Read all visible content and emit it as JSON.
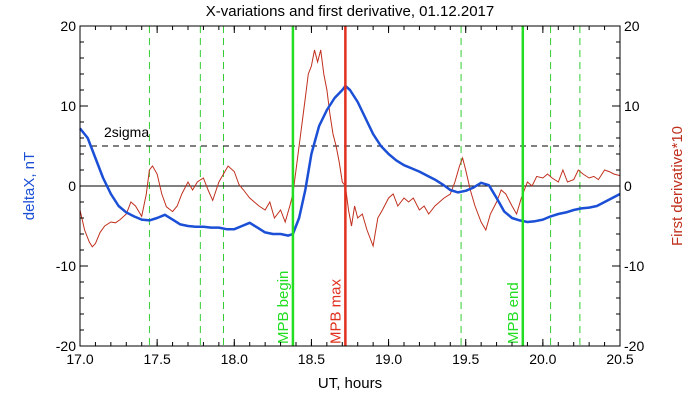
{
  "chart_data": {
    "type": "line",
    "title": "X-variations and first derivative, 01.12.2017",
    "xlabel": "UT, hours",
    "ylabel_left": "deltaX, nT",
    "ylabel_right": "First derivative*10",
    "xlim": [
      17.0,
      20.5
    ],
    "ylim_left": [
      -20,
      20
    ],
    "ylim_right": [
      -20,
      20
    ],
    "x_ticks": [
      "17.0",
      "17.5",
      "18.0",
      "18.5",
      "19.0",
      "19.5",
      "20.0",
      "20.5"
    ],
    "y_ticks_left": [
      "-20",
      "-10",
      "0",
      "10",
      "20"
    ],
    "y_ticks_right": [
      "-20",
      "-10",
      "0",
      "10",
      "20"
    ],
    "threshold": {
      "label": "2sigma",
      "value": 5.0
    },
    "zero_line": 0,
    "grid": false,
    "colors": {
      "deltaX": "#1a4fd6",
      "derivative": "#c0301e",
      "mpb_begin": "#22dd22",
      "mpb_max": "#e0301e",
      "mpb_end": "#22dd22",
      "dashed_green": "#33cc33"
    },
    "markers": [
      {
        "label": "MPB begin",
        "x": 18.38
      },
      {
        "label": "MPB max",
        "x": 18.72
      },
      {
        "label": "MPB end",
        "x": 19.87
      }
    ],
    "dashed_verticals": [
      17.45,
      17.78,
      17.93,
      19.47,
      20.05,
      20.24
    ],
    "series": [
      {
        "x": [
          17.0,
          17.05,
          17.1,
          17.15,
          17.2,
          17.25,
          17.3,
          17.35,
          17.4,
          17.45,
          17.5,
          17.55,
          17.6,
          17.65,
          17.7,
          17.75,
          17.8,
          17.85,
          17.9,
          17.95,
          18.0,
          18.05,
          18.1,
          18.15,
          18.2,
          18.25,
          18.3,
          18.35,
          18.38,
          18.42,
          18.46,
          18.5,
          18.55,
          18.6,
          18.65,
          18.7,
          18.72,
          18.75,
          18.8,
          18.85,
          18.9,
          18.95,
          19.0,
          19.05,
          19.1,
          19.15,
          19.2,
          19.25,
          19.3,
          19.35,
          19.4,
          19.45,
          19.5,
          19.55,
          19.6,
          19.65,
          19.7,
          19.75,
          19.8,
          19.85,
          19.9,
          19.95,
          20.0,
          20.05,
          20.1,
          20.15,
          20.2,
          20.25,
          20.3,
          20.35,
          20.4,
          20.45,
          20.5
        ],
        "values": [
          7.2,
          6.0,
          3.5,
          1.0,
          -1.0,
          -2.5,
          -3.3,
          -3.8,
          -4.2,
          -4.3,
          -4.0,
          -3.6,
          -4.2,
          -4.8,
          -5.0,
          -5.1,
          -5.1,
          -5.2,
          -5.2,
          -5.4,
          -5.4,
          -5.0,
          -4.6,
          -5.2,
          -5.8,
          -6.0,
          -6.0,
          -6.2,
          -6.0,
          -4.0,
          -0.5,
          4.0,
          7.5,
          9.5,
          11.0,
          12.0,
          12.5,
          12.0,
          10.5,
          8.5,
          6.5,
          5.0,
          4.0,
          3.2,
          2.6,
          2.2,
          1.8,
          1.3,
          0.8,
          0.2,
          -0.5,
          -0.8,
          -0.6,
          -0.2,
          0.4,
          0.1,
          -1.5,
          -3.2,
          -4.0,
          -4.3,
          -4.5,
          -4.4,
          -4.2,
          -3.8,
          -3.5,
          -3.3,
          -3.0,
          -2.8,
          -2.7,
          -2.5,
          -2.0,
          -1.5,
          -1.0
        ]
      },
      {
        "x": [
          17.0,
          17.03,
          17.06,
          17.08,
          17.1,
          17.13,
          17.16,
          17.2,
          17.23,
          17.26,
          17.3,
          17.33,
          17.36,
          17.4,
          17.43,
          17.45,
          17.47,
          17.5,
          17.53,
          17.56,
          17.6,
          17.63,
          17.66,
          17.7,
          17.73,
          17.76,
          17.8,
          17.83,
          17.86,
          17.9,
          17.93,
          17.96,
          18.0,
          18.03,
          18.06,
          18.1,
          18.13,
          18.16,
          18.2,
          18.23,
          18.26,
          18.3,
          18.33,
          18.36,
          18.38,
          18.4,
          18.42,
          18.44,
          18.46,
          18.48,
          18.5,
          18.52,
          18.54,
          18.56,
          18.58,
          18.6,
          18.62,
          18.64,
          18.66,
          18.68,
          18.7,
          18.72,
          18.74,
          18.76,
          18.78,
          18.8,
          18.83,
          18.86,
          18.9,
          18.93,
          18.96,
          19.0,
          19.03,
          19.06,
          19.1,
          19.13,
          19.16,
          19.2,
          19.23,
          19.26,
          19.3,
          19.33,
          19.36,
          19.4,
          19.43,
          19.46,
          19.48,
          19.5,
          19.53,
          19.56,
          19.6,
          19.63,
          19.66,
          19.7,
          19.73,
          19.76,
          19.8,
          19.83,
          19.86,
          19.9,
          19.93,
          19.96,
          20.0,
          20.03,
          20.06,
          20.1,
          20.13,
          20.16,
          20.2,
          20.23,
          20.26,
          20.3,
          20.33,
          20.36,
          20.4,
          20.43,
          20.46,
          20.5
        ],
        "values": [
          -3.0,
          -5.5,
          -7.0,
          -7.6,
          -7.2,
          -5.8,
          -5.0,
          -4.5,
          -4.6,
          -4.2,
          -3.5,
          -2.0,
          -2.5,
          -3.8,
          -1.0,
          2.0,
          2.5,
          1.5,
          -1.0,
          -2.6,
          -3.2,
          -2.5,
          -1.0,
          0.5,
          -0.5,
          0.5,
          1.0,
          -0.5,
          -1.8,
          0.5,
          1.5,
          2.5,
          1.8,
          0.2,
          -0.5,
          -1.5,
          -2.0,
          -2.5,
          -3.0,
          -2.0,
          -4.0,
          -3.0,
          -4.5,
          -2.5,
          -1.0,
          2.0,
          5.0,
          8.0,
          11.0,
          14.0,
          15.0,
          17.0,
          15.5,
          17.0,
          14.0,
          12.0,
          9.0,
          6.5,
          5.0,
          3.0,
          0.5,
          0.0,
          -3.0,
          -5.0,
          -2.5,
          -4.0,
          -3.5,
          -5.5,
          -7.5,
          -4.0,
          -3.0,
          -1.5,
          -1.0,
          -2.5,
          -1.5,
          -2.0,
          -1.5,
          -3.0,
          -2.5,
          -3.5,
          -2.5,
          -2.0,
          -1.5,
          -1.0,
          0.5,
          2.5,
          3.5,
          2.0,
          -0.5,
          -2.5,
          -4.5,
          -5.5,
          -3.5,
          -2.0,
          -0.5,
          -1.0,
          -2.5,
          -3.5,
          -1.5,
          0.5,
          0.0,
          1.2,
          1.0,
          1.5,
          1.0,
          0.5,
          2.0,
          0.5,
          0.8,
          2.0,
          1.5,
          1.0,
          1.2,
          0.8,
          2.0,
          1.8,
          1.5,
          1.3
        ]
      }
    ]
  }
}
